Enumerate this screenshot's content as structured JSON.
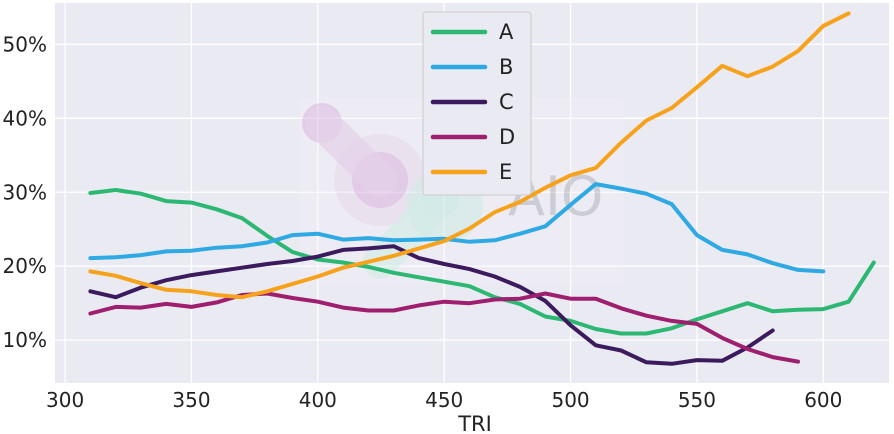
{
  "chart_data": {
    "type": "line",
    "title": "",
    "xlabel": "TRI",
    "ylabel": "",
    "xlim": [
      296,
      626
    ],
    "ylim": [
      4.2,
      55.6
    ],
    "grid": true,
    "legend_placement": "top-center",
    "x_ticks": [
      300,
      350,
      400,
      450,
      500,
      550,
      600
    ],
    "x_tick_labels": [
      "300",
      "350",
      "400",
      "450",
      "500",
      "550",
      "600"
    ],
    "y_ticks": [
      10,
      20,
      30,
      40,
      50
    ],
    "y_tick_labels": [
      "10%",
      "20%",
      "30%",
      "40%",
      "50%"
    ],
    "series": [
      {
        "name": "A",
        "color": "#2cb872",
        "x": [
          310,
          320,
          330,
          340,
          350,
          360,
          370,
          380,
          390,
          400,
          410,
          420,
          430,
          440,
          450,
          460,
          470,
          480,
          490,
          500,
          510,
          520,
          530,
          540,
          550,
          560,
          570,
          580,
          590,
          600,
          610,
          620
        ],
        "values": [
          29.9,
          30.3,
          29.8,
          28.8,
          28.6,
          27.7,
          26.5,
          24.1,
          21.9,
          20.9,
          20.5,
          19.9,
          19.1,
          18.5,
          17.9,
          17.3,
          15.8,
          14.9,
          13.2,
          12.6,
          11.5,
          10.9,
          10.9,
          11.6,
          12.8,
          13.9,
          15.0,
          13.9,
          14.1,
          14.2,
          15.2,
          20.5
        ]
      },
      {
        "name": "B",
        "color": "#2fa9e3",
        "x": [
          310,
          320,
          330,
          340,
          350,
          360,
          370,
          380,
          390,
          400,
          410,
          420,
          430,
          440,
          450,
          460,
          470,
          480,
          490,
          500,
          510,
          520,
          530,
          540,
          550,
          560,
          570,
          580,
          590,
          600
        ],
        "values": [
          21.1,
          21.2,
          21.5,
          22.0,
          22.1,
          22.5,
          22.7,
          23.2,
          24.2,
          24.4,
          23.6,
          23.8,
          23.5,
          23.6,
          23.7,
          23.3,
          23.5,
          24.4,
          25.4,
          28.3,
          31.1,
          30.5,
          29.8,
          28.4,
          24.2,
          22.2,
          21.6,
          20.4,
          19.5,
          19.3
        ]
      },
      {
        "name": "C",
        "color": "#3b1a5e",
        "x": [
          310,
          320,
          330,
          340,
          350,
          360,
          370,
          380,
          390,
          400,
          410,
          420,
          430,
          440,
          450,
          460,
          470,
          480,
          490,
          500,
          510,
          520,
          530,
          540,
          550,
          560,
          570,
          580
        ],
        "values": [
          16.6,
          15.8,
          17.1,
          18.1,
          18.8,
          19.3,
          19.8,
          20.3,
          20.7,
          21.3,
          22.2,
          22.4,
          22.7,
          21.1,
          20.3,
          19.6,
          18.6,
          17.2,
          15.3,
          12.0,
          9.3,
          8.6,
          7.0,
          6.8,
          7.3,
          7.2,
          9.0,
          11.3
        ]
      },
      {
        "name": "D",
        "color": "#9e1f6e",
        "x": [
          310,
          320,
          330,
          340,
          350,
          360,
          370,
          380,
          390,
          400,
          410,
          420,
          430,
          440,
          450,
          460,
          470,
          480,
          490,
          500,
          510,
          520,
          530,
          540,
          550,
          560,
          570,
          580,
          590
        ],
        "values": [
          13.6,
          14.5,
          14.4,
          14.9,
          14.5,
          15.1,
          16.1,
          16.3,
          15.7,
          15.2,
          14.4,
          14.0,
          14.0,
          14.7,
          15.2,
          15.0,
          15.5,
          15.6,
          16.3,
          15.6,
          15.6,
          14.3,
          13.3,
          12.6,
          12.2,
          10.3,
          8.8,
          7.7,
          7.1
        ]
      },
      {
        "name": "E",
        "color": "#f6a21d",
        "x": [
          310,
          320,
          330,
          340,
          350,
          360,
          370,
          380,
          390,
          400,
          410,
          420,
          430,
          440,
          450,
          460,
          470,
          480,
          490,
          500,
          510,
          520,
          530,
          540,
          550,
          560,
          570,
          580,
          590,
          600,
          610
        ],
        "values": [
          19.3,
          18.7,
          17.7,
          16.8,
          16.6,
          16.1,
          15.8,
          16.6,
          17.6,
          18.6,
          19.8,
          20.6,
          21.4,
          22.4,
          23.4,
          25.1,
          27.3,
          28.7,
          30.6,
          32.3,
          33.3,
          36.7,
          39.7,
          41.4,
          44.2,
          47.1,
          45.7,
          47.0,
          49.1,
          52.5,
          54.2
        ]
      }
    ]
  }
}
